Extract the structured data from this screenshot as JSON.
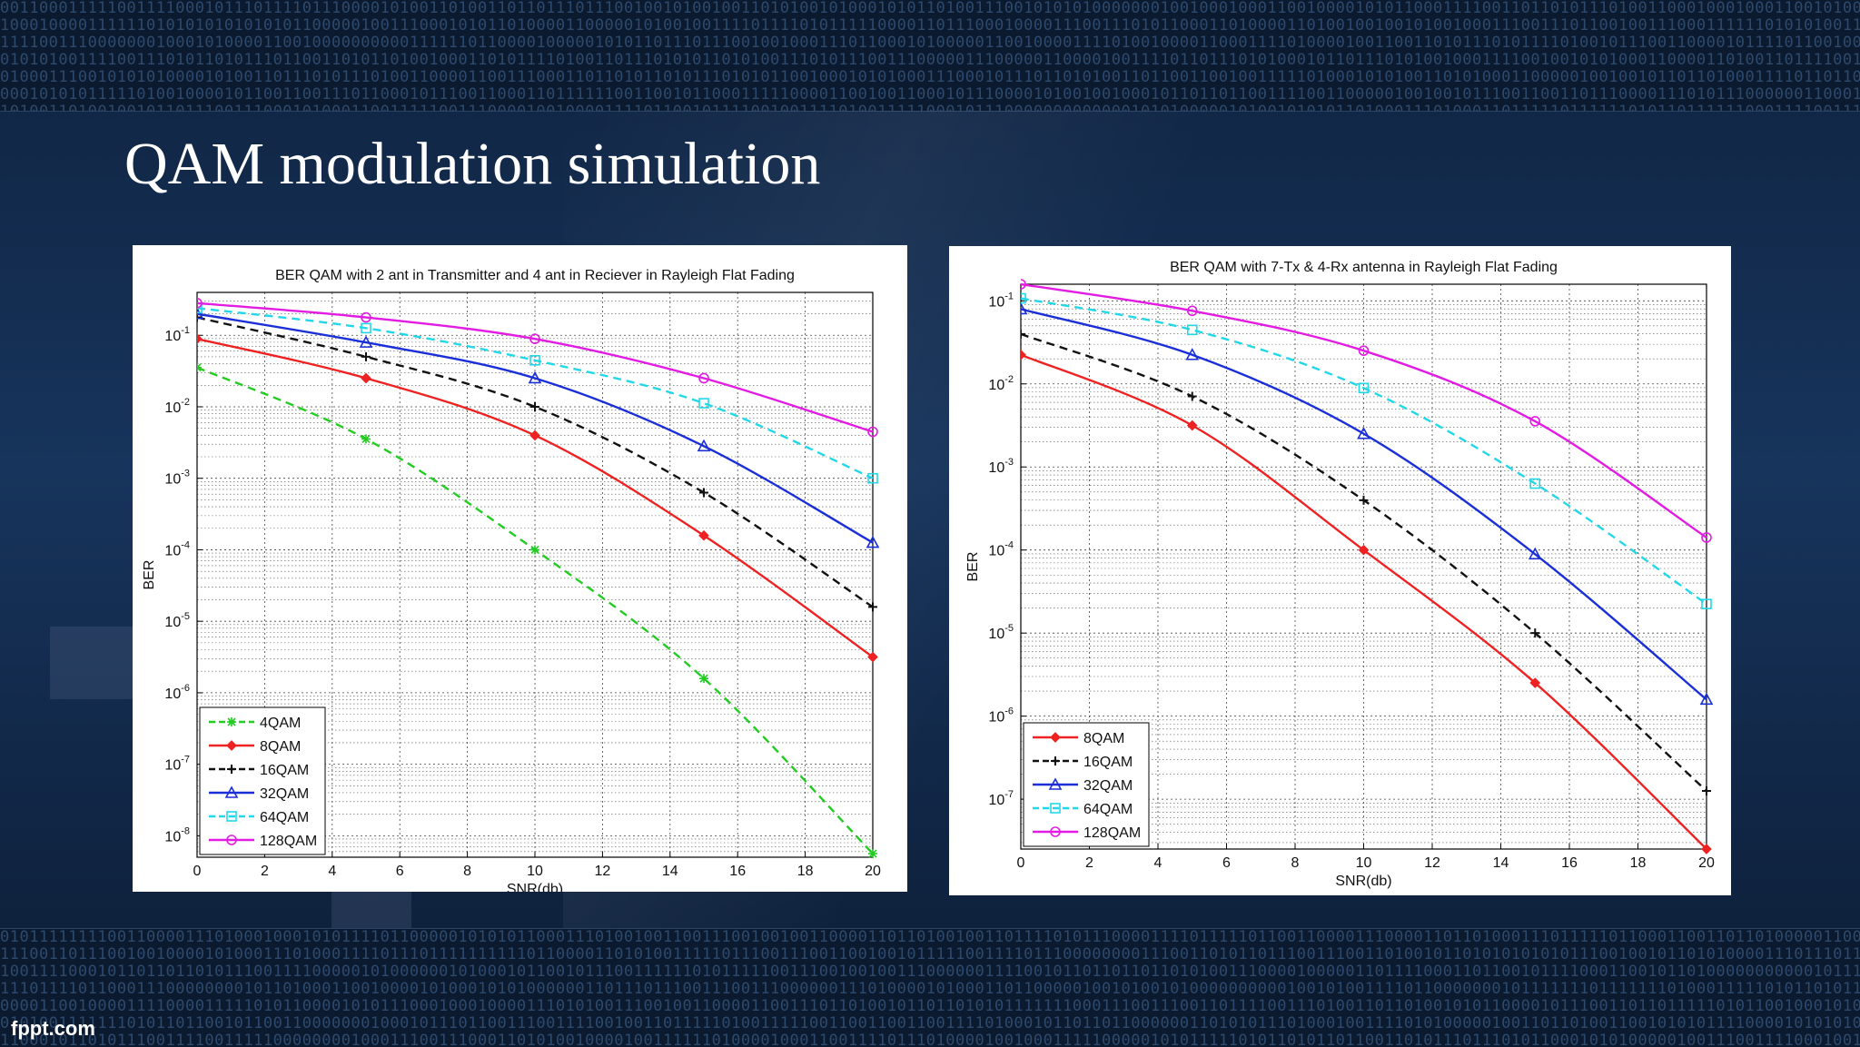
{
  "slide": {
    "title": "QAM modulation simulation",
    "footer_brand": "fppt.com"
  },
  "colors": {
    "4QAM": "#22cc22",
    "8QAM": "#ee2222",
    "16QAM": "#111111",
    "32QAM": "#1a2fd8",
    "64QAM": "#22d8e8",
    "128QAM": "#e21ce2"
  },
  "chart_data": [
    {
      "type": "line",
      "title": "BER QAM with 2 ant in Transmitter and 4 ant in Reciever in Rayleigh Flat Fading",
      "xlabel": "SNR(db)",
      "ylabel": "BER",
      "yscale": "log",
      "xlim": [
        0,
        20
      ],
      "ylim_exp": [
        -8.3,
        -0.4
      ],
      "x_ticks": [
        0,
        2,
        4,
        6,
        8,
        10,
        12,
        14,
        16,
        18,
        20
      ],
      "y_tick_exps": [
        -1,
        -2,
        -3,
        -4,
        -5,
        -6,
        -7,
        -8
      ],
      "grid": true,
      "legend_position": "bottom-left",
      "x": [
        0,
        5,
        10,
        15,
        20
      ],
      "series": [
        {
          "name": "4QAM",
          "marker": "star",
          "dash": "dashed",
          "log10_values": [
            -1.45,
            -2.45,
            -4.0,
            -5.8,
            -8.25
          ]
        },
        {
          "name": "8QAM",
          "marker": "diamond",
          "dash": "solid",
          "log10_values": [
            -1.05,
            -1.6,
            -2.4,
            -3.8,
            -5.5
          ]
        },
        {
          "name": "16QAM",
          "marker": "plus",
          "dash": "dashed",
          "log10_values": [
            -0.75,
            -1.3,
            -2.0,
            -3.2,
            -4.8
          ]
        },
        {
          "name": "32QAM",
          "marker": "triangle",
          "dash": "solid",
          "log10_values": [
            -0.7,
            -1.1,
            -1.6,
            -2.55,
            -3.9
          ]
        },
        {
          "name": "64QAM",
          "marker": "square",
          "dash": "dashed",
          "log10_values": [
            -0.62,
            -0.9,
            -1.35,
            -1.95,
            -3.0
          ]
        },
        {
          "name": "128QAM",
          "marker": "circle",
          "dash": "solid",
          "log10_values": [
            -0.55,
            -0.75,
            -1.05,
            -1.6,
            -2.35
          ]
        }
      ]
    },
    {
      "type": "line",
      "title": "BER QAM with 7-Tx & 4-Rx antenna in Rayleigh Flat Fading",
      "xlabel": "SNR(db)",
      "ylabel": "BER",
      "yscale": "log",
      "xlim": [
        0,
        20
      ],
      "ylim_exp": [
        -7.6,
        -0.8
      ],
      "x_ticks": [
        0,
        2,
        4,
        6,
        8,
        10,
        12,
        14,
        16,
        18,
        20
      ],
      "y_tick_exps": [
        -1,
        -2,
        -3,
        -4,
        -5,
        -6,
        -7
      ],
      "grid": true,
      "legend_position": "bottom-left",
      "x": [
        0,
        5,
        10,
        15,
        20
      ],
      "series": [
        {
          "name": "8QAM",
          "marker": "diamond",
          "dash": "solid",
          "log10_values": [
            -1.65,
            -2.5,
            -4.0,
            -5.6,
            -7.6
          ]
        },
        {
          "name": "16QAM",
          "marker": "plus",
          "dash": "dashed",
          "log10_values": [
            -1.4,
            -2.15,
            -3.4,
            -5.0,
            -6.9
          ]
        },
        {
          "name": "32QAM",
          "marker": "triangle",
          "dash": "solid",
          "log10_values": [
            -1.1,
            -1.65,
            -2.6,
            -4.05,
            -5.8
          ]
        },
        {
          "name": "64QAM",
          "marker": "square",
          "dash": "dashed",
          "log10_values": [
            -0.97,
            -1.35,
            -2.05,
            -3.2,
            -4.65
          ]
        },
        {
          "name": "128QAM",
          "marker": "circle",
          "dash": "solid",
          "log10_values": [
            -0.8,
            -1.12,
            -1.6,
            -2.45,
            -3.85
          ]
        }
      ]
    }
  ]
}
